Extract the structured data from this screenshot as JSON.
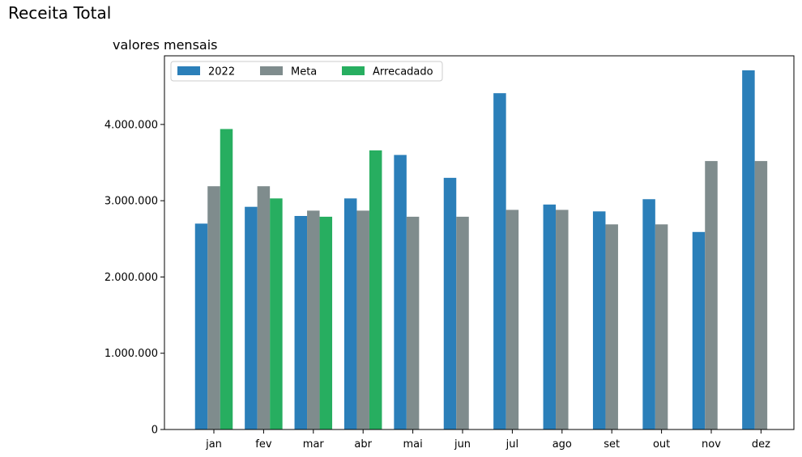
{
  "figure_title": "Receita Total",
  "chart_data": {
    "type": "bar",
    "title": "valores mensais",
    "xlabel": "",
    "ylabel": "",
    "ylim": [
      0,
      4900000
    ],
    "yticks": [
      0,
      1000000,
      2000000,
      3000000,
      4000000
    ],
    "ytick_labels": [
      "0",
      "1.000.000",
      "2.000.000",
      "3.000.000",
      "4.000.000"
    ],
    "categories": [
      "jan",
      "fev",
      "mar",
      "abr",
      "mai",
      "jun",
      "jul",
      "ago",
      "set",
      "out",
      "nov",
      "dez"
    ],
    "series": [
      {
        "name": "2022",
        "color": "#2b7fb9",
        "values": [
          2700000,
          2920000,
          2800000,
          3030000,
          3600000,
          3300000,
          4410000,
          2950000,
          2860000,
          3020000,
          2590000,
          4710000
        ]
      },
      {
        "name": "Meta",
        "color": "#7f8c8d",
        "values": [
          3190000,
          3190000,
          2870000,
          2870000,
          2790000,
          2790000,
          2880000,
          2880000,
          2690000,
          2690000,
          3520000,
          3520000
        ]
      },
      {
        "name": "Arrecadado",
        "color": "#27ae60",
        "values": [
          3940000,
          3030000,
          2790000,
          3660000,
          null,
          null,
          null,
          null,
          null,
          null,
          null,
          null
        ]
      }
    ],
    "legend": {
      "position": "top-left",
      "ncol": 3
    },
    "grid": false
  }
}
